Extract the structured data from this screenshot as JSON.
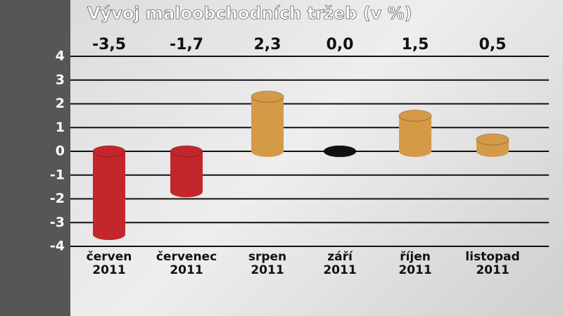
{
  "chart_data": {
    "type": "bar",
    "title": "Vývoj maloobchodních tržeb (v %)",
    "categories": [
      "červen 2011",
      "červenec 2011",
      "srpen 2011",
      "září 2011",
      "říjen 2011",
      "listopad 2011"
    ],
    "values": [
      -3.5,
      -1.7,
      2.3,
      0.0,
      1.5,
      0.5
    ],
    "value_labels": [
      "-3,5",
      "-1,7",
      "2,3",
      "0,0",
      "1,5",
      "0,5"
    ],
    "colors": [
      "#c3272b",
      "#c3272b",
      "#d49a48",
      "#111111",
      "#d49a48",
      "#d49a48"
    ],
    "ylim": [
      -4,
      4
    ],
    "yticks": [
      -4,
      -3,
      -2,
      -1,
      0,
      1,
      2,
      3,
      4
    ],
    "grid": true
  }
}
